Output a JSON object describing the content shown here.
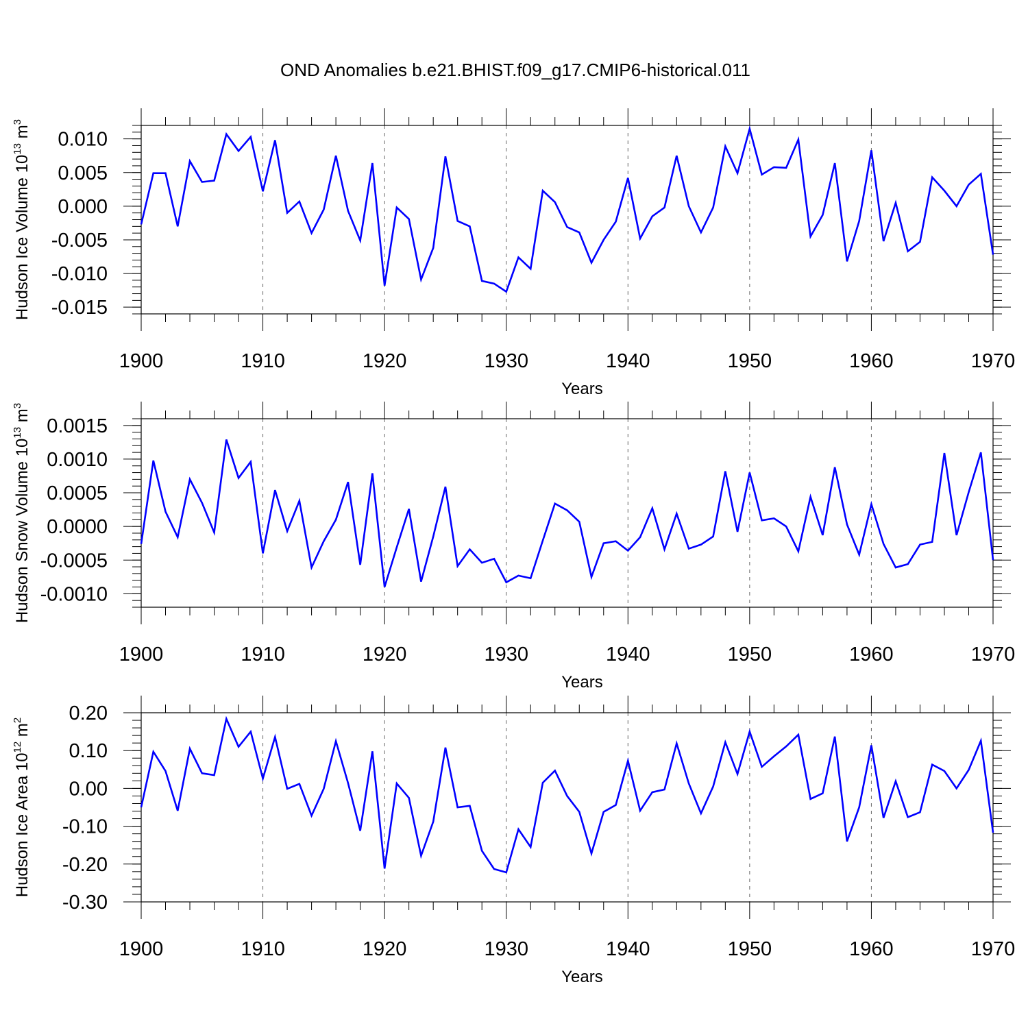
{
  "title": "OND Anomalies b.e21.BHIST.f09_g17.CMIP6-historical.011",
  "colors": {
    "line": "#0000ff",
    "axis": "#000000",
    "grid": "#666666"
  },
  "chart_data": [
    {
      "type": "line",
      "ylabel": {
        "base": "Hudson Ice Volume 10",
        "sup": "13",
        "unit": " m",
        "unit_sup": "3"
      },
      "xlabel": "Years",
      "xlim": [
        1900,
        1970
      ],
      "ylim": [
        -0.016,
        0.012
      ],
      "x_ticks": [
        "1900",
        "1910",
        "1920",
        "1930",
        "1940",
        "1950",
        "1960",
        "1970"
      ],
      "y_ticks": [
        {
          "value": 0.01,
          "label": "0.010"
        },
        {
          "value": 0.005,
          "label": "0.005"
        },
        {
          "value": 0.0,
          "label": "0.000"
        },
        {
          "value": -0.005,
          "label": "-0.005"
        },
        {
          "value": -0.01,
          "label": "-0.010"
        },
        {
          "value": -0.015,
          "label": "-0.015"
        }
      ],
      "y_minor_step": 0.001,
      "series": [
        {
          "name": "Hudson Ice Volume",
          "x_start": 1900,
          "values": [
            -0.0027,
            0.0049,
            0.0049,
            -0.003,
            0.0067,
            0.0036,
            0.0038,
            0.0107,
            0.0082,
            0.0103,
            0.0022,
            0.0098,
            -0.001,
            0.0007,
            -0.004,
            -0.0005,
            0.0075,
            -0.0007,
            -0.0051,
            0.0064,
            -0.0118,
            -0.0002,
            -0.0019,
            -0.0109,
            -0.0062,
            0.0074,
            -0.0022,
            -0.003,
            -0.0111,
            -0.0115,
            -0.0127,
            -0.0076,
            -0.0093,
            0.0023,
            0.0006,
            -0.0031,
            -0.0039,
            -0.0084,
            -0.005,
            -0.0023,
            0.0042,
            -0.0048,
            -0.0015,
            -0.0002,
            0.0075,
            0.0,
            -0.0039,
            -0.0002,
            0.0089,
            0.0049,
            0.0115,
            0.0047,
            0.0058,
            0.0057,
            0.0099,
            -0.0045,
            -0.0013,
            0.0064,
            -0.0082,
            -0.0022,
            0.0083,
            -0.0052,
            0.0005,
            -0.0067,
            -0.0053,
            0.0043,
            0.0023,
            0.0,
            0.0032,
            0.0048,
            -0.0072
          ]
        }
      ]
    },
    {
      "type": "line",
      "ylabel": {
        "base": "Hudson Snow Volume 10",
        "sup": "13",
        "unit": " m",
        "unit_sup": "3"
      },
      "xlabel": "Years",
      "xlim": [
        1900,
        1970
      ],
      "ylim": [
        -0.0012,
        0.0016
      ],
      "x_ticks": [
        "1900",
        "1910",
        "1920",
        "1930",
        "1940",
        "1950",
        "1960",
        "1970"
      ],
      "y_ticks": [
        {
          "value": 0.0015,
          "label": "0.0015"
        },
        {
          "value": 0.001,
          "label": "0.0010"
        },
        {
          "value": 0.0005,
          "label": "0.0005"
        },
        {
          "value": 0.0,
          "label": "0.0000"
        },
        {
          "value": -0.0005,
          "label": "-0.0005"
        },
        {
          "value": -0.001,
          "label": "-0.0010"
        }
      ],
      "y_minor_step": 0.0001,
      "series": [
        {
          "name": "Hudson Snow Volume",
          "x_start": 1900,
          "values": [
            -0.00026,
            0.00098,
            0.00022,
            -0.00016,
            0.0007,
            0.00035,
            -9e-05,
            0.00129,
            0.00072,
            0.00096,
            -0.0004,
            0.00054,
            -7e-05,
            0.00038,
            -0.00061,
            -0.00022,
            0.0001,
            0.00066,
            -0.00057,
            0.00079,
            -0.0009,
            -0.00031,
            0.00026,
            -0.00082,
            -0.00015,
            0.00059,
            -0.00059,
            -0.00034,
            -0.00054,
            -0.00048,
            -0.00083,
            -0.00073,
            -0.00077,
            -0.00021,
            0.00034,
            0.00024,
            7e-05,
            -0.00075,
            -0.00025,
            -0.00022,
            -0.00036,
            -0.00016,
            0.00027,
            -0.00034,
            0.00019,
            -0.00033,
            -0.00027,
            -0.00015,
            0.00082,
            -8e-05,
            0.0008,
            9e-05,
            0.00012,
            0.0,
            -0.00037,
            0.00044,
            -0.00013,
            0.00088,
            3e-05,
            -0.00042,
            0.00033,
            -0.00026,
            -0.00061,
            -0.00056,
            -0.00027,
            -0.00023,
            0.00109,
            -0.00013,
            0.00051,
            0.0011,
            -0.0005
          ]
        }
      ]
    },
    {
      "type": "line",
      "ylabel": {
        "base": "Hudson Ice Area 10",
        "sup": "12",
        "unit": " m",
        "unit_sup": "2"
      },
      "xlabel": "Years",
      "xlim": [
        1900,
        1970
      ],
      "ylim": [
        -0.3,
        0.2
      ],
      "x_ticks": [
        "1900",
        "1910",
        "1920",
        "1930",
        "1940",
        "1950",
        "1960",
        "1970"
      ],
      "y_ticks": [
        {
          "value": 0.2,
          "label": "0.20"
        },
        {
          "value": 0.1,
          "label": "0.10"
        },
        {
          "value": 0.0,
          "label": "0.00"
        },
        {
          "value": -0.1,
          "label": "-0.10"
        },
        {
          "value": -0.2,
          "label": "-0.20"
        },
        {
          "value": -0.3,
          "label": "-0.30"
        }
      ],
      "y_minor_step": 0.02,
      "series": [
        {
          "name": "Hudson Ice Area",
          "x_start": 1900,
          "values": [
            -0.05,
            0.097,
            0.046,
            -0.059,
            0.105,
            0.04,
            0.035,
            0.184,
            0.11,
            0.15,
            0.026,
            0.136,
            -0.001,
            0.012,
            -0.072,
            -0.001,
            0.125,
            0.014,
            -0.112,
            0.098,
            -0.212,
            0.013,
            -0.025,
            -0.178,
            -0.088,
            0.108,
            -0.05,
            -0.046,
            -0.165,
            -0.213,
            -0.222,
            -0.108,
            -0.155,
            0.015,
            0.047,
            -0.02,
            -0.062,
            -0.172,
            -0.062,
            -0.044,
            0.073,
            -0.059,
            -0.01,
            -0.003,
            0.119,
            0.013,
            -0.066,
            0.005,
            0.122,
            0.038,
            0.15,
            0.057,
            0.085,
            0.111,
            0.142,
            -0.028,
            -0.013,
            0.137,
            -0.14,
            -0.05,
            0.114,
            -0.078,
            0.019,
            -0.076,
            -0.063,
            0.063,
            0.046,
            0.0,
            0.049,
            0.126,
            -0.117
          ]
        }
      ]
    }
  ]
}
